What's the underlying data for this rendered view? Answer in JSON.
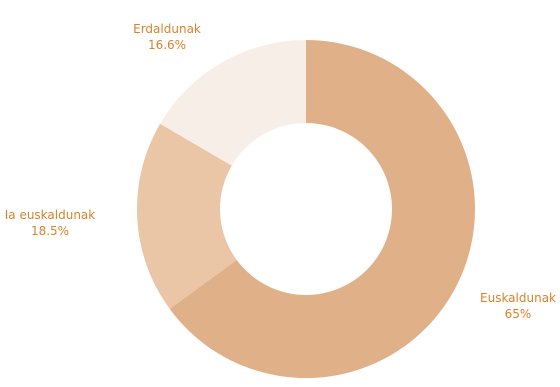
{
  "chart_data": {
    "type": "pie",
    "donut": true,
    "slices": [
      {
        "label": "Euskaldunak",
        "value": 65,
        "value_label": "65%",
        "color": "#e0b088"
      },
      {
        "label": "Ia euskaldunak",
        "value": 18.5,
        "value_label": "18.5%",
        "color": "#ebc6a6"
      },
      {
        "label": "Erdaldunak",
        "value": 16.6,
        "value_label": "16.6%",
        "color": "#f8eee8"
      }
    ],
    "label_color": "#d9822b"
  }
}
